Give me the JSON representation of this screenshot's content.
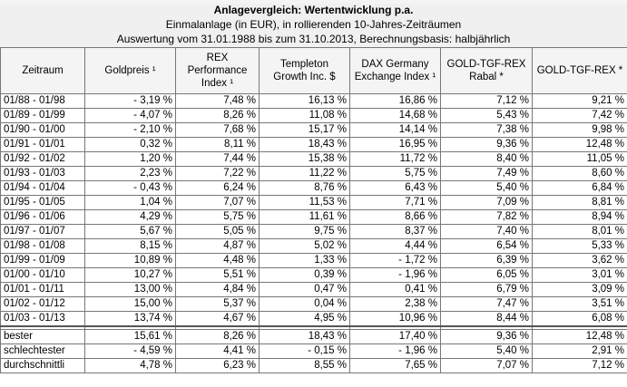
{
  "header": {
    "title": "Anlagevergleich: Wertentwicklung p.a.",
    "subtitle": "Einmalanlage (in EUR), in rollierenden 10-Jahres-Zeiträumen",
    "note": "Auswertung vom 31.01.1988 bis zum 31.10.2013, Berechnungsbasis: halbjährlich"
  },
  "columns": [
    [
      "Zeitraum"
    ],
    [
      "Goldpreis ¹"
    ],
    [
      "REX",
      "Performance",
      "Index ¹"
    ],
    [
      "Templeton",
      "Growth Inc. $"
    ],
    [
      "DAX Germany",
      "Exchange Index ¹"
    ],
    [
      "GOLD-TGF-REX",
      "Rabal *"
    ],
    [
      "GOLD-TGF-REX *"
    ]
  ],
  "rows": [
    [
      "01/88 - 01/98",
      "- 3,19 %",
      "7,48 %",
      "16,13 %",
      "16,86 %",
      "7,12 %",
      "9,21 %"
    ],
    [
      "01/89 - 01/99",
      "- 4,07 %",
      "8,26 %",
      "11,08 %",
      "14,68 %",
      "5,43 %",
      "7,42 %"
    ],
    [
      "01/90 - 01/00",
      "- 2,10 %",
      "7,68 %",
      "15,17 %",
      "14,14 %",
      "7,38 %",
      "9,98 %"
    ],
    [
      "01/91 - 01/01",
      "0,32 %",
      "8,11 %",
      "18,43 %",
      "16,95 %",
      "9,36 %",
      "12,48 %"
    ],
    [
      "01/92 - 01/02",
      "1,20 %",
      "7,44 %",
      "15,38 %",
      "11,72 %",
      "8,40 %",
      "11,05 %"
    ],
    [
      "01/93 - 01/03",
      "2,23 %",
      "7,22 %",
      "11,22 %",
      "5,75 %",
      "7,49 %",
      "8,60 %"
    ],
    [
      "01/94 - 01/04",
      "- 0,43 %",
      "6,24 %",
      "8,76 %",
      "6,43 %",
      "5,40 %",
      "6,84 %"
    ],
    [
      "01/95 - 01/05",
      "1,04 %",
      "7,07 %",
      "11,53 %",
      "7,71 %",
      "7,09 %",
      "8,81 %"
    ],
    [
      "01/96 - 01/06",
      "4,29 %",
      "5,75 %",
      "11,61 %",
      "8,66 %",
      "7,82 %",
      "8,94 %"
    ],
    [
      "01/97 - 01/07",
      "5,67 %",
      "5,05 %",
      "9,75 %",
      "8,37 %",
      "7,40 %",
      "8,01 %"
    ],
    [
      "01/98 - 01/08",
      "8,15 %",
      "4,87 %",
      "5,02 %",
      "4,44 %",
      "6,54 %",
      "5,33 %"
    ],
    [
      "01/99 - 01/09",
      "10,89 %",
      "4,48 %",
      "1,33 %",
      "- 1,72 %",
      "6,39 %",
      "3,62 %"
    ],
    [
      "01/00 - 01/10",
      "10,27 %",
      "5,51 %",
      "0,39 %",
      "- 1,96 %",
      "6,05 %",
      "3,01 %"
    ],
    [
      "01/01 - 01/11",
      "13,00 %",
      "4,84 %",
      "0,47 %",
      "0,41 %",
      "6,79 %",
      "3,09 %"
    ],
    [
      "01/02 - 01/12",
      "15,00 %",
      "5,37 %",
      "0,04 %",
      "2,38 %",
      "7,47 %",
      "3,51 %"
    ],
    [
      "01/03 - 01/13",
      "13,74 %",
      "4,67 %",
      "4,95 %",
      "10,96 %",
      "8,44 %",
      "6,08 %"
    ]
  ],
  "summary": [
    [
      "bester",
      "15,61 %",
      "8,26 %",
      "18,43 %",
      "17,40 %",
      "9,36 %",
      "12,48 %"
    ],
    [
      "schlechtester",
      "- 4,59 %",
      "4,41 %",
      "- 0,15 %",
      "- 1,96 %",
      "5,40 %",
      "2,91 %"
    ],
    [
      "durchschnittli",
      "4,78 %",
      "6,23 %",
      "8,55 %",
      "7,65 %",
      "7,07 %",
      "7,12 %"
    ]
  ]
}
